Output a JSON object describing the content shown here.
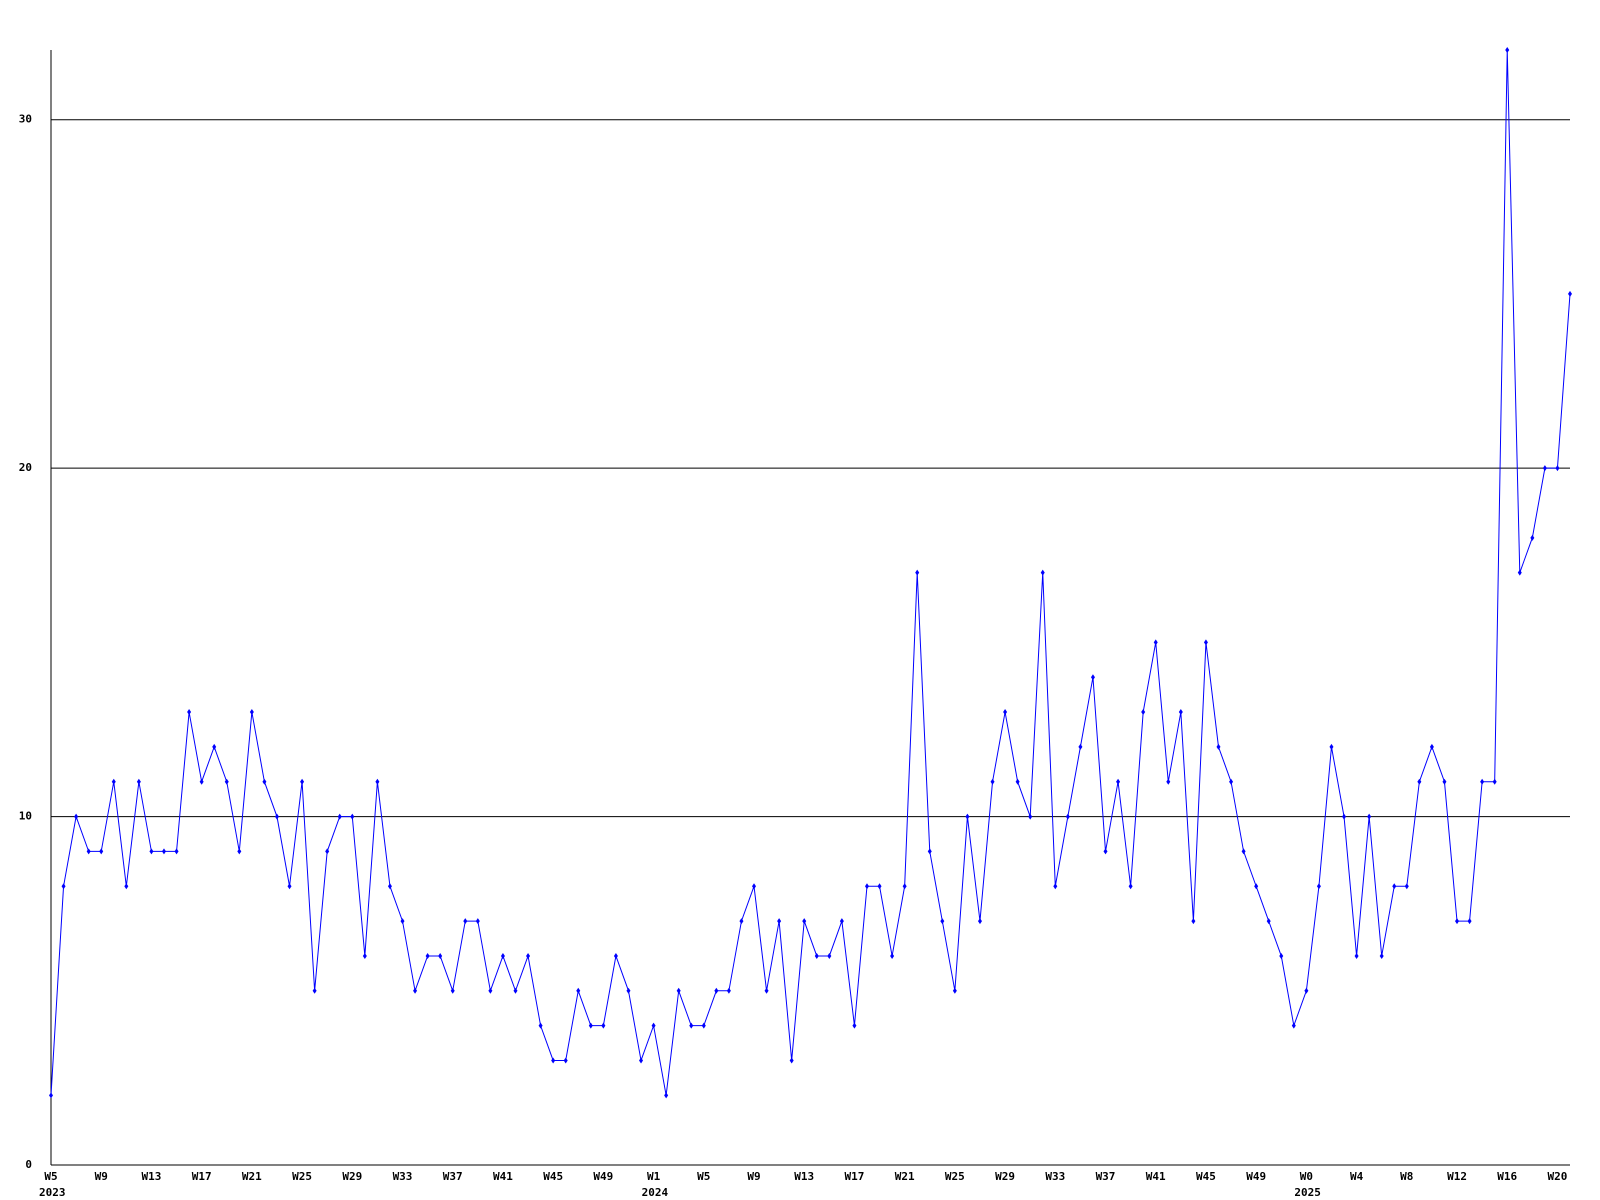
{
  "chart_data": {
    "type": "line",
    "categories": [
      "W5",
      null,
      null,
      null,
      "W9",
      null,
      null,
      null,
      "W13",
      null,
      null,
      null,
      "W17",
      null,
      null,
      null,
      "W21",
      null,
      null,
      null,
      "W25",
      null,
      null,
      null,
      "W29",
      null,
      null,
      null,
      "W33",
      null,
      null,
      null,
      "W37",
      null,
      null,
      null,
      "W41",
      null,
      null,
      null,
      "W45",
      null,
      null,
      null,
      "W49",
      null,
      null,
      null,
      "W1",
      null,
      null,
      null,
      "W5",
      null,
      null,
      null,
      "W9",
      null,
      null,
      null,
      "W13",
      null,
      null,
      null,
      "W17",
      null,
      null,
      null,
      "W21",
      null,
      null,
      null,
      "W25",
      null,
      null,
      null,
      "W29",
      null,
      null,
      null,
      "W33",
      null,
      null,
      null,
      "W37",
      null,
      null,
      null,
      "W41",
      null,
      null,
      null,
      "W45",
      null,
      null,
      null,
      "W49",
      null,
      null,
      null,
      "W0",
      null,
      null,
      null,
      "W4",
      null,
      null,
      null,
      "W8",
      null,
      null,
      null,
      "W12",
      null,
      null,
      null,
      "W16",
      null,
      null,
      null,
      "W20",
      null
    ],
    "years": [
      "2023",
      null,
      null,
      null,
      null,
      null,
      null,
      null,
      null,
      null,
      null,
      null,
      null,
      null,
      null,
      null,
      null,
      null,
      null,
      null,
      null,
      null,
      null,
      null,
      null,
      null,
      null,
      null,
      null,
      null,
      null,
      null,
      null,
      null,
      null,
      null,
      null,
      null,
      null,
      null,
      null,
      null,
      null,
      null,
      null,
      null,
      null,
      null,
      "2024",
      null,
      null,
      null,
      null,
      null,
      null,
      null,
      null,
      null,
      null,
      null,
      null,
      null,
      null,
      null,
      null,
      null,
      null,
      null,
      null,
      null,
      null,
      null,
      null,
      null,
      null,
      null,
      null,
      null,
      null,
      null,
      null,
      null,
      null,
      null,
      null,
      null,
      null,
      null,
      null,
      null,
      null,
      null,
      null,
      null,
      null,
      null,
      null,
      null,
      null,
      null,
      "2025",
      null,
      null,
      null,
      null,
      null,
      null,
      null,
      null,
      null,
      null,
      null,
      null,
      null,
      null,
      null,
      null,
      null,
      null,
      null,
      null
    ],
    "series": [
      {
        "color": "#0000ff",
        "values": [
          2,
          8,
          10,
          9,
          9,
          11,
          8,
          11,
          9,
          9,
          9,
          13,
          11,
          12,
          11,
          9,
          13,
          11,
          10,
          8,
          11,
          5,
          9,
          10,
          10,
          6,
          11,
          8,
          7,
          5,
          6,
          6,
          5,
          7,
          7,
          5,
          6,
          5,
          6,
          4,
          3,
          3,
          5,
          4,
          4,
          6,
          5,
          3,
          4,
          2,
          5,
          4,
          4,
          5,
          5,
          7,
          8,
          5,
          7,
          3,
          7,
          6,
          6,
          7,
          4,
          8,
          8,
          6,
          8,
          17,
          9,
          7,
          5,
          10,
          7,
          11,
          13,
          11,
          10,
          17,
          8,
          10,
          12,
          14,
          9,
          11,
          8,
          13,
          15,
          11,
          13,
          7,
          15,
          12,
          11,
          9,
          8,
          7,
          6,
          4,
          5,
          8,
          12,
          10,
          6,
          10,
          6,
          8,
          8,
          11,
          12,
          11,
          7,
          7,
          11,
          11,
          32,
          17,
          18,
          20,
          20,
          25
        ]
      }
    ],
    "ylim": [
      0,
      32
    ],
    "yticks": [
      0,
      10,
      20,
      30
    ],
    "grid": true
  }
}
